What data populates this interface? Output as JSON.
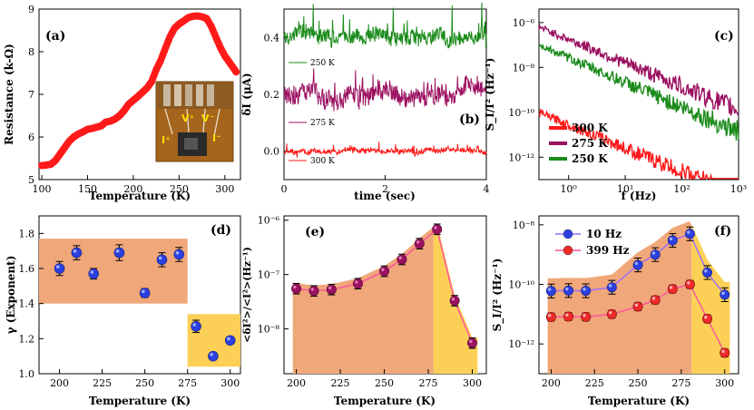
{
  "chart_data": [
    {
      "panel": "(a)",
      "type": "scatter",
      "xlabel": "Temperature (K)",
      "ylabel": "Resistance (k-Ω)",
      "xlim": [
        97,
        317
      ],
      "ylim": [
        5,
        9
      ],
      "xticks": [
        100,
        150,
        200,
        250,
        300
      ],
      "yticks": [
        5,
        6,
        7,
        8,
        9
      ],
      "color": "#ff1a1a",
      "x": [
        100,
        105,
        110,
        115,
        120,
        125,
        130,
        135,
        140,
        145,
        150,
        155,
        160,
        165,
        170,
        175,
        180,
        185,
        190,
        195,
        200,
        205,
        210,
        215,
        220,
        225,
        230,
        235,
        240,
        245,
        250,
        255,
        260,
        265,
        270,
        275,
        280,
        285,
        290,
        295,
        300,
        305,
        310,
        313
      ],
      "values": [
        5.33,
        5.34,
        5.36,
        5.45,
        5.6,
        5.75,
        5.9,
        6.0,
        6.07,
        6.12,
        6.18,
        6.2,
        6.23,
        6.26,
        6.35,
        6.37,
        6.42,
        6.5,
        6.62,
        6.77,
        6.86,
        6.95,
        7.05,
        7.15,
        7.3,
        7.58,
        7.8,
        8.08,
        8.35,
        8.55,
        8.65,
        8.72,
        8.8,
        8.83,
        8.84,
        8.82,
        8.78,
        8.6,
        8.35,
        8.1,
        7.9,
        7.75,
        7.6,
        7.5
      ],
      "inset": {
        "labels": [
          "V⁺",
          "V⁻",
          "I⁺",
          "I⁻"
        ]
      }
    },
    {
      "panel": "(b)",
      "type": "line",
      "xlabel": "time (sec)",
      "ylabel": "δI (μA)",
      "xlim": [
        0,
        4
      ],
      "ylim": [
        -0.1,
        0.5
      ],
      "xticks": [
        0,
        2,
        4
      ],
      "yticks": [
        0.0,
        0.2,
        0.4
      ],
      "series": [
        {
          "name": "250 K",
          "color": "#1a8a1a",
          "mean": 0.41,
          "noise": 0.025,
          "spikes": 0.08
        },
        {
          "name": "275 K",
          "color": "#9b1060",
          "mean": 0.2,
          "noise": 0.03,
          "spikes": 0.07
        },
        {
          "name": "300 K",
          "color": "#ff1a1a",
          "mean": 0.0,
          "noise": 0.008,
          "spikes": 0.02
        }
      ]
    },
    {
      "panel": "(c)",
      "type": "line",
      "xlabel": "f (Hz)",
      "ylabel": "S_I/I² (Hz⁻¹)",
      "xscale": "log",
      "yscale": "log",
      "xlim": [
        0.3,
        1000
      ],
      "ylim": [
        1e-13,
        4e-06
      ],
      "xticks": [
        "10⁰",
        "10¹",
        "10²",
        "10³"
      ],
      "yticks": [
        "10⁻⁶",
        "10⁻⁸",
        "10⁻¹⁰",
        "10⁻¹²"
      ],
      "series": [
        {
          "name": "300 K",
          "color": "#ff1a1a",
          "start_exp": -10.0,
          "slope": -1.05
        },
        {
          "name": "275 K",
          "color": "#9b1060",
          "start_exp": -6.2,
          "slope": -1.05
        },
        {
          "name": "250 K",
          "color": "#1a8a1a",
          "start_exp": -7.0,
          "slope": -1.1
        }
      ]
    },
    {
      "panel": "(d)",
      "type": "scatter",
      "xlabel": "Temperature (K)",
      "ylabel": "γ (Exponent)",
      "xlim": [
        188,
        306
      ],
      "ylim": [
        1.0,
        1.9
      ],
      "xticks": [
        200,
        225,
        250,
        275,
        300
      ],
      "yticks": [
        1.0,
        1.2,
        1.4,
        1.6,
        1.8
      ],
      "x": [
        200,
        210,
        220,
        235,
        250,
        260,
        270,
        280,
        290,
        300
      ],
      "values": [
        1.6,
        1.69,
        1.57,
        1.69,
        1.46,
        1.65,
        1.68,
        1.27,
        1.1,
        1.19
      ],
      "errors": [
        0.04,
        0.04,
        0.03,
        0.045,
        0.025,
        0.04,
        0.04,
        0.035,
        0.02,
        0.02
      ],
      "regions": [
        {
          "x": [
            188,
            275
          ],
          "y": [
            1.4,
            1.77
          ],
          "color": "#f0a779"
        },
        {
          "x": [
            275,
            306
          ],
          "y": [
            1.04,
            1.34
          ],
          "color": "#fcd057"
        }
      ]
    },
    {
      "panel": "(e)",
      "type": "scatter",
      "xlabel": "Temperature (K)",
      "ylabel": "<δI²>/<I²>(Hz⁻¹)",
      "yscale": "log",
      "xlim": [
        193,
        308
      ],
      "ylim": [
        1.5e-09,
        1.2e-06
      ],
      "xticks": [
        200,
        225,
        250,
        275,
        300
      ],
      "yticks": [
        "10⁻⁶",
        "10⁻⁷",
        "10⁻⁸"
      ],
      "x": [
        200,
        210,
        220,
        235,
        250,
        260,
        270,
        280,
        290,
        300
      ],
      "values": [
        5.5e-08,
        5e-08,
        5.3e-08,
        6.8e-08,
        1.15e-07,
        1.9e-07,
        3.7e-07,
        6.8e-07,
        3.3e-08,
        5.5e-09
      ],
      "regions": [
        {
          "x": [
            198,
            278
          ],
          "color": "#f0a779"
        },
        {
          "x": [
            278,
            303
          ],
          "color": "#fcd057"
        }
      ]
    },
    {
      "panel": "(f)",
      "type": "scatter",
      "xlabel": "Temperature (K)",
      "ylabel": "S_I/I² (Hz⁻¹)",
      "yscale": "log",
      "xlim": [
        193,
        308
      ],
      "ylim": [
        1e-13,
        2e-08
      ],
      "xticks": [
        200,
        225,
        250,
        275,
        300
      ],
      "yticks": [
        "10⁻⁸",
        "10⁻¹⁰",
        "10⁻¹²"
      ],
      "series": [
        {
          "name": "10 Hz",
          "color": "#2c3fe0",
          "x": [
            200,
            210,
            220,
            235,
            250,
            260,
            270,
            280,
            290,
            300
          ],
          "values": [
            6e-11,
            6.2e-11,
            6.1e-11,
            8e-11,
            4.5e-10,
            1e-09,
            3e-09,
            5e-09,
            2.5e-10,
            4.5e-11
          ]
        },
        {
          "name": "399 Hz",
          "color": "#ee2a2a",
          "x": [
            200,
            210,
            220,
            235,
            250,
            260,
            270,
            280,
            290,
            300
          ],
          "values": [
            8e-12,
            8.3e-12,
            8.1e-12,
            1e-11,
            1.8e-11,
            3e-11,
            7e-11,
            1e-10,
            7e-12,
            5e-13
          ]
        }
      ],
      "regions": [
        {
          "x": [
            198,
            281
          ],
          "color": "#f0a779"
        },
        {
          "x": [
            281,
            303
          ],
          "color": "#fcd057"
        }
      ]
    }
  ]
}
